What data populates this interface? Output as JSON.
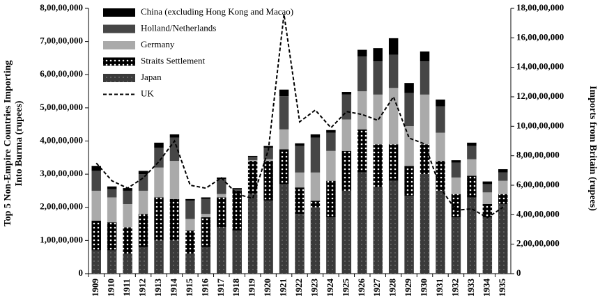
{
  "chart_data": {
    "type": "stacked-bar-line",
    "y_label": "Top 5 Non-Empire Countries Importing Into Burma (rupees)",
    "y2_label": "Imports from Britain (rupees)",
    "categories": [
      "1909",
      "1910",
      "1911",
      "1912",
      "1913",
      "1914",
      "1915",
      "1916",
      "1917",
      "1918",
      "1919",
      "1920",
      "1921",
      "1922",
      "1923",
      "1924",
      "1925",
      "1926",
      "1927",
      "1928",
      "1929",
      "1930",
      "1931",
      "1932",
      "1933",
      "1934",
      "1935"
    ],
    "ylim": [
      0,
      80000000
    ],
    "yticks": [
      0,
      {
        "value": 10000000,
        "label": "1,00,00,000"
      },
      {
        "value": 20000000,
        "label": "2,00,00,000"
      },
      {
        "value": 30000000,
        "label": "3,00,00,000"
      },
      {
        "value": 40000000,
        "label": "4,00,00,000"
      },
      {
        "value": 50000000,
        "label": "5,00,00,000"
      },
      {
        "value": 60000000,
        "label": "6,00,00,000"
      },
      {
        "value": 70000000,
        "label": "7,00,00,000"
      },
      {
        "value": 80000000,
        "label": "8,00,00,000"
      }
    ],
    "y2lim": [
      0,
      180000000
    ],
    "y2ticks": [
      0,
      {
        "value": 20000000,
        "label": "2,00,00,000"
      },
      {
        "value": 40000000,
        "label": "4,00,00,000"
      },
      {
        "value": 60000000,
        "label": "6,00,00,000"
      },
      {
        "value": 80000000,
        "label": "8,00,00,000"
      },
      {
        "value": 100000000,
        "label": "10,00,00,000"
      },
      {
        "value": 120000000,
        "label": "12,00,00,000"
      },
      {
        "value": 140000000,
        "label": "14,00,00,000"
      },
      {
        "value": 160000000,
        "label": "16,00,00,000"
      },
      {
        "value": 180000000,
        "label": "18,00,00,000"
      }
    ],
    "series": [
      {
        "name": "Japan",
        "color": "#3a3a3a",
        "pattern": "dots",
        "values": [
          7000000,
          7000000,
          6000000,
          8000000,
          10000000,
          10000000,
          6000000,
          8000000,
          14000000,
          13000000,
          24000000,
          22000000,
          27000000,
          18000000,
          20000000,
          17000000,
          25000000,
          30500000,
          26000000,
          28000000,
          23500000,
          30000000,
          25000000,
          17000000,
          23000000,
          17000000,
          21000000
        ]
      },
      {
        "name": "Straits Settlement",
        "color": "#000000",
        "pattern": "dots",
        "values": [
          9000000,
          8500000,
          8000000,
          10000000,
          13000000,
          12500000,
          7000000,
          9000000,
          9000000,
          12000000,
          10000000,
          12000000,
          10500000,
          8000000,
          2000000,
          11000000,
          12000000,
          13000000,
          13000000,
          11000000,
          9000000,
          9000000,
          9000000,
          7000000,
          6500000,
          4000000,
          3000000
        ]
      },
      {
        "name": "Germany",
        "color": "#aaaaaa",
        "values": [
          9000000,
          7500000,
          7000000,
          7000000,
          9000000,
          11500000,
          3500000,
          1000000,
          1000000,
          0,
          200000,
          500000,
          6000000,
          4500000,
          8500000,
          9000000,
          9500000,
          11500000,
          15000000,
          17000000,
          12000000,
          15000000,
          8500000,
          5000000,
          5000000,
          3500000,
          4000000
        ]
      },
      {
        "name": "Holland/Netherlands",
        "color": "#464646",
        "values": [
          6000000,
          2500000,
          4000000,
          5000000,
          6000000,
          7000000,
          5500000,
          4500000,
          4500000,
          500000,
          1000000,
          3500000,
          10000000,
          8000000,
          10500000,
          5500000,
          7500000,
          10500000,
          10000000,
          10000000,
          10000000,
          10000000,
          8000000,
          4500000,
          4000000,
          2500000,
          2500000
        ]
      },
      {
        "name": "China (excluding Hong Kong and Macao)",
        "color": "#000000",
        "values": [
          1500000,
          800000,
          800000,
          1000000,
          1500000,
          1000000,
          500000,
          500000,
          500000,
          300000,
          300000,
          500000,
          2000000,
          800000,
          1000000,
          800000,
          800000,
          2000000,
          4000000,
          5000000,
          3000000,
          3000000,
          2000000,
          700000,
          1000000,
          800000,
          1000000
        ]
      },
      {
        "name": "UK",
        "color": "#000000",
        "axis": "y2",
        "kind": "line",
        "dash": true,
        "values": [
          75000000,
          63000000,
          58000000,
          65000000,
          76000000,
          90000000,
          60000000,
          58000000,
          65000000,
          54000000,
          51000000,
          84000000,
          176000000,
          103000000,
          111000000,
          99000000,
          110000000,
          108000000,
          104000000,
          120000000,
          92000000,
          88000000,
          58000000,
          43000000,
          44000000,
          38000000,
          45000000
        ]
      }
    ],
    "legend_order": [
      4,
      3,
      2,
      1,
      0,
      5
    ],
    "legend": "top-left"
  }
}
